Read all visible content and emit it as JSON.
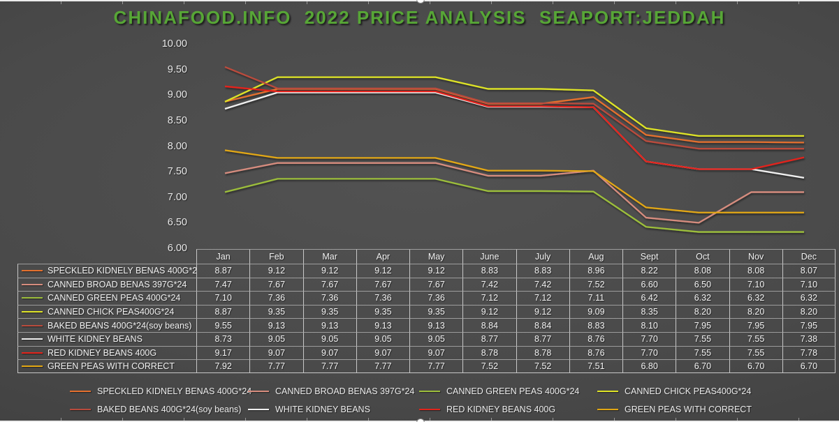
{
  "colors": {
    "title_green": "#57a636",
    "axis_label": "#e8e8e8",
    "table_text": "#f2f2f2",
    "grid_border": "#dedede"
  },
  "chart_data": {
    "type": "line",
    "title": "CHINAFOOD.INFO  2022 PRICE ANALYSIS  SEAPORT:JEDDAH",
    "x": [
      "Jan",
      "Feb",
      "Mar",
      "Apr",
      "May",
      "June",
      "July",
      "Aug",
      "Sept",
      "Oct",
      "Nov",
      "Dec"
    ],
    "xlabel": "",
    "ylabel": "",
    "ylim": [
      6.0,
      10.0
    ],
    "ytick_step": 0.5,
    "yticks": [
      "10.00",
      "9.50",
      "9.00",
      "8.50",
      "8.00",
      "7.50",
      "7.00",
      "6.50",
      "6.00"
    ],
    "grid": false,
    "legend_position": "bottom",
    "data_table_shown": true,
    "series": [
      {
        "name": "SPECKLED KIDNELY BENAS 400G*24",
        "color": "#e4702e",
        "values": [
          8.87,
          9.12,
          9.12,
          9.12,
          9.12,
          8.83,
          8.83,
          8.96,
          8.22,
          8.08,
          8.08,
          8.07
        ]
      },
      {
        "name": "CANNED BROAD BENAS 397G*24",
        "color": "#d68c7e",
        "values": [
          7.47,
          7.67,
          7.67,
          7.67,
          7.67,
          7.42,
          7.42,
          7.52,
          6.6,
          6.5,
          7.1,
          7.1
        ]
      },
      {
        "name": "CANNED GREEN PEAS 400G*24",
        "color": "#9cbe3b",
        "values": [
          7.1,
          7.36,
          7.36,
          7.36,
          7.36,
          7.12,
          7.12,
          7.11,
          6.42,
          6.32,
          6.32,
          6.32
        ]
      },
      {
        "name": "CANNED CHICK PEAS400G*24",
        "color": "#dee326",
        "values": [
          8.87,
          9.35,
          9.35,
          9.35,
          9.35,
          9.12,
          9.12,
          9.09,
          8.35,
          8.2,
          8.2,
          8.2
        ]
      },
      {
        "name": "BAKED BEANS 400G*24(soy beans)",
        "color": "#ba4b3c",
        "values": [
          9.55,
          9.13,
          9.13,
          9.13,
          9.13,
          8.84,
          8.84,
          8.83,
          8.1,
          7.95,
          7.95,
          7.95
        ]
      },
      {
        "name": "WHITE KIDNEY BEANS",
        "color": "#f0f0f0",
        "values": [
          8.73,
          9.05,
          9.05,
          9.05,
          9.05,
          8.77,
          8.77,
          8.76,
          7.7,
          7.55,
          7.55,
          7.38
        ]
      },
      {
        "name": "RED KIDNEY BEANS 400G",
        "color": "#e3241b",
        "values": [
          9.17,
          9.07,
          9.07,
          9.07,
          9.07,
          8.78,
          8.78,
          8.76,
          7.7,
          7.55,
          7.55,
          7.78
        ]
      },
      {
        "name": "GREEN PEAS WITH CORRECT",
        "color": "#e2a713",
        "values": [
          7.92,
          7.77,
          7.77,
          7.77,
          7.77,
          7.52,
          7.52,
          7.51,
          6.8,
          6.7,
          6.7,
          6.7
        ]
      }
    ]
  }
}
